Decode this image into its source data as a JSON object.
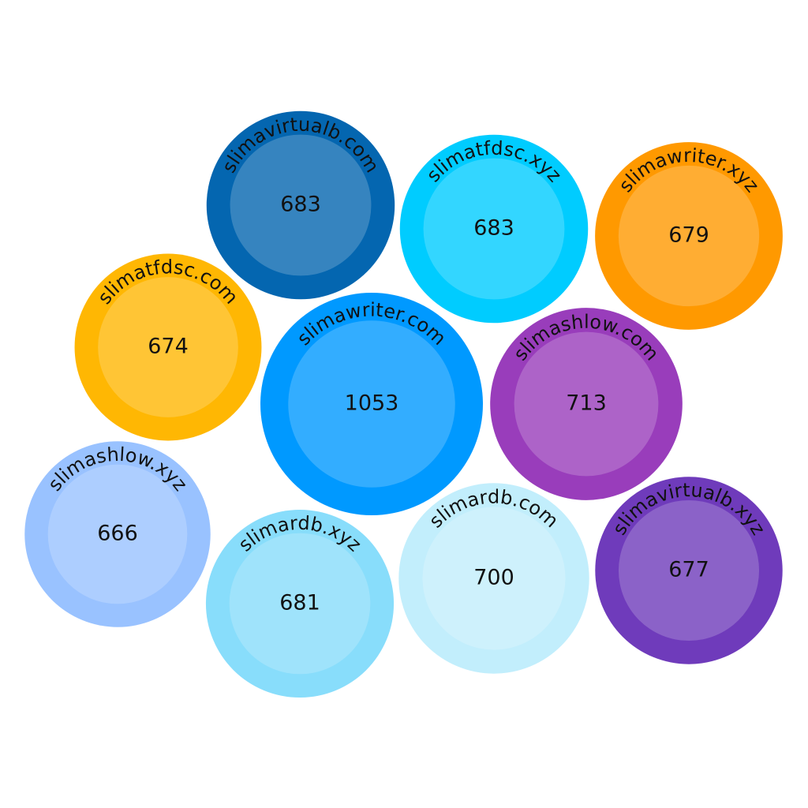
{
  "chart_data": {
    "type": "packed_bubble",
    "categories": [
      "slimavirtualb.com",
      "slimatfdsc.xyz",
      "slimawriter.xyz",
      "slimatfdsc.com",
      "slimawriter.com",
      "slimashlow.com",
      "slimashlow.xyz",
      "slimardb.xyz",
      "slimardb.com",
      "slimavirtualb.xyz"
    ],
    "values": [
      683,
      683,
      679,
      674,
      1053,
      713,
      666,
      681,
      700,
      677
    ],
    "colors": [
      "#0466b0",
      "#00ccff",
      "#ff9900",
      "#ffb703",
      "#0099ff",
      "#993dbb",
      "#99c2ff",
      "#88ddfb",
      "#c2eefc",
      "#6f3bbb"
    ]
  }
}
